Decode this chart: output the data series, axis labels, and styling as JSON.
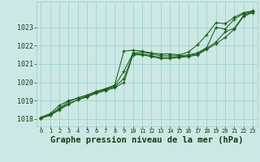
{
  "background_color": "#cce8e4",
  "plot_bg_color": "#cce8e4",
  "grid_color": "#99cccc",
  "line_color": "#1a5e1a",
  "title": "Graphe pression niveau de la mer (hPa)",
  "title_fontsize": 7.5,
  "ytick_fontsize": 6,
  "xtick_fontsize": 5,
  "yticks": [
    1018,
    1019,
    1020,
    1021,
    1022,
    1023
  ],
  "ylim": [
    1017.6,
    1024.4
  ],
  "xlim": [
    -0.5,
    23.5
  ],
  "xticks": [
    0,
    1,
    2,
    3,
    4,
    5,
    6,
    7,
    8,
    9,
    10,
    11,
    12,
    13,
    14,
    15,
    16,
    17,
    18,
    19,
    20,
    21,
    22,
    23
  ],
  "series": [
    [
      1018.1,
      1018.3,
      1018.75,
      1019.0,
      1019.15,
      1019.3,
      1019.5,
      1019.65,
      1019.85,
      1021.7,
      1021.75,
      1021.7,
      1021.6,
      1021.55,
      1021.55,
      1021.5,
      1021.65,
      1022.05,
      1022.6,
      1023.25,
      1023.2,
      1023.55,
      1023.8,
      1023.9
    ],
    [
      1018.05,
      1018.25,
      1018.6,
      1018.95,
      1019.15,
      1019.3,
      1019.5,
      1019.65,
      1019.8,
      1020.6,
      1021.6,
      1021.65,
      1021.55,
      1021.45,
      1021.45,
      1021.45,
      1021.5,
      1021.6,
      1021.9,
      1023.0,
      1022.9,
      1023.45,
      1023.75,
      1023.85
    ],
    [
      1018.05,
      1018.2,
      1018.55,
      1018.85,
      1019.05,
      1019.25,
      1019.45,
      1019.6,
      1019.75,
      1020.2,
      1021.55,
      1021.55,
      1021.45,
      1021.35,
      1021.35,
      1021.4,
      1021.45,
      1021.55,
      1021.85,
      1022.2,
      1022.75,
      1022.95,
      1023.65,
      1023.85
    ],
    [
      1018.05,
      1018.2,
      1018.5,
      1018.8,
      1019.05,
      1019.2,
      1019.4,
      1019.55,
      1019.7,
      1020.0,
      1021.5,
      1021.5,
      1021.4,
      1021.3,
      1021.3,
      1021.35,
      1021.4,
      1021.5,
      1021.8,
      1022.1,
      1022.45,
      1022.9,
      1023.6,
      1023.8
    ]
  ]
}
